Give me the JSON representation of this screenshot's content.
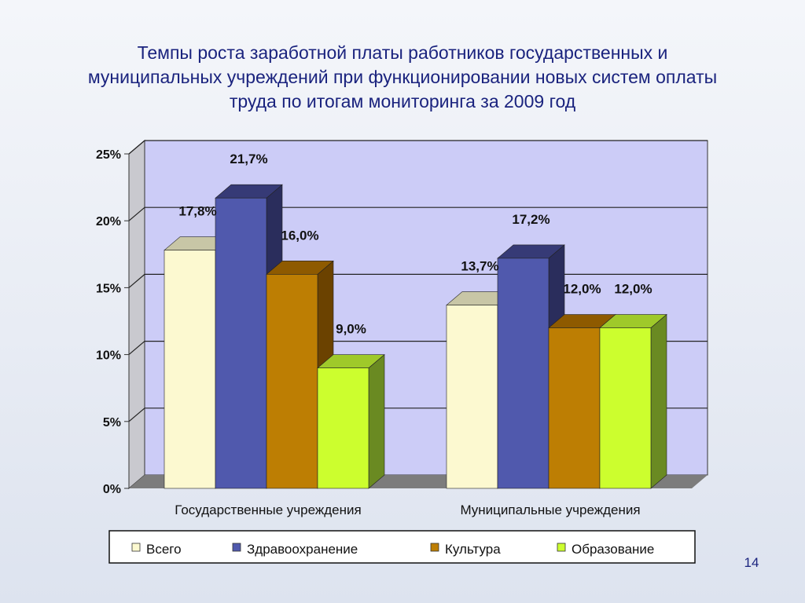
{
  "slide": {
    "title": "Темпы роста заработной платы работников государственных и муниципальных учреждений при функционировании новых систем оплаты труда по итогам мониторинга за 2009 год",
    "page_number": "14"
  },
  "chart_data": {
    "type": "bar",
    "categories": [
      "Государственные учреждения",
      "Муниципальные учреждения"
    ],
    "series": [
      {
        "name": "Всего",
        "values": [
          17.8,
          13.7
        ],
        "labels": [
          "17,8%",
          "13,7%"
        ],
        "color": "#fcf9d0",
        "side": "#b9b896",
        "top": "#c8c6a6"
      },
      {
        "name": "Здравоохранение",
        "values": [
          21.7,
          17.2
        ],
        "labels": [
          "21,7%",
          "17,2%"
        ],
        "color": "#5059ad",
        "side": "#2a2d5c",
        "top": "#363a76"
      },
      {
        "name": "Культура",
        "values": [
          16.0,
          12.0
        ],
        "labels": [
          "16,0%",
          "12,0%"
        ],
        "color": "#bd7e03",
        "side": "#6b4200",
        "top": "#8e5a00"
      },
      {
        "name": "Образование",
        "values": [
          9.0,
          12.0
        ],
        "labels": [
          "9,0%",
          "12,0%"
        ],
        "color": "#ccfe2e",
        "side": "#6a8a22",
        "top": "#9fc92a"
      }
    ],
    "y_ticks": [
      "0%",
      "5%",
      "10%",
      "15%",
      "20%",
      "25%"
    ],
    "ylim": [
      0,
      25
    ],
    "grid": true,
    "legend_position": "bottom",
    "colors": {
      "plot_back": "#ccccf7",
      "plot_side": "#c9c9cf",
      "floor": "#7c7c7c",
      "title": "#1a237e"
    }
  }
}
